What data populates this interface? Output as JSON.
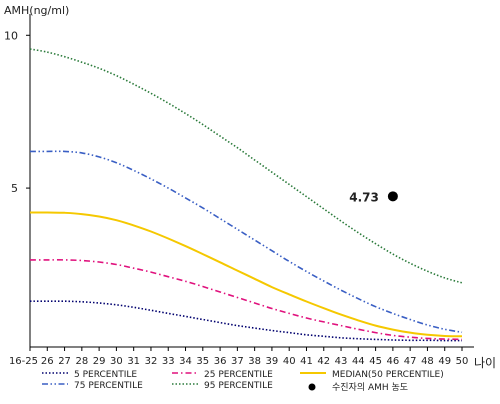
{
  "chart_data": {
    "type": "line",
    "ylabel": "AMH(ng/ml)",
    "xlabel": "나이",
    "categories": [
      "16-25",
      "26",
      "27",
      "28",
      "29",
      "30",
      "31",
      "32",
      "33",
      "34",
      "35",
      "36",
      "37",
      "38",
      "39",
      "40",
      "41",
      "42",
      "43",
      "44",
      "45",
      "46",
      "47",
      "48",
      "49",
      "50"
    ],
    "yticks": [
      {
        "value": 5,
        "label": "5"
      },
      {
        "value": 10,
        "label": "10"
      }
    ],
    "ylim": [
      -0.2,
      10.5
    ],
    "grid": false,
    "series": [
      {
        "name": "5 PERCENTILE",
        "color": "#00006e",
        "dash": "dotted",
        "values": [
          1.3,
          1.3,
          1.3,
          1.28,
          1.24,
          1.18,
          1.1,
          1.0,
          0.9,
          0.8,
          0.7,
          0.6,
          0.5,
          0.42,
          0.34,
          0.27,
          0.2,
          0.15,
          0.1,
          0.07,
          0.05,
          0.03,
          0.02,
          0.02,
          0.01,
          0.01
        ]
      },
      {
        "name": "25 PERCENTILE",
        "color": "#e0117d",
        "dash": "dashdot",
        "values": [
          2.65,
          2.65,
          2.65,
          2.63,
          2.58,
          2.5,
          2.38,
          2.25,
          2.1,
          1.95,
          1.78,
          1.6,
          1.42,
          1.24,
          1.06,
          0.9,
          0.75,
          0.62,
          0.5,
          0.38,
          0.27,
          0.18,
          0.12,
          0.08,
          0.06,
          0.05
        ]
      },
      {
        "name": "MEDIAN(50 PERCENTILE)",
        "color": "#f5c800",
        "dash": "solid",
        "values": [
          4.2,
          4.2,
          4.19,
          4.15,
          4.07,
          3.95,
          3.78,
          3.58,
          3.35,
          3.1,
          2.84,
          2.57,
          2.3,
          2.03,
          1.76,
          1.52,
          1.29,
          1.07,
          0.86,
          0.67,
          0.5,
          0.37,
          0.27,
          0.2,
          0.16,
          0.15
        ]
      },
      {
        "name": "75 PERCENTILE",
        "color": "#3a5fc4",
        "dash": "dashdotdot",
        "values": [
          6.2,
          6.2,
          6.2,
          6.15,
          6.02,
          5.83,
          5.58,
          5.3,
          5.0,
          4.68,
          4.35,
          4.0,
          3.65,
          3.3,
          2.95,
          2.6,
          2.27,
          1.96,
          1.66,
          1.38,
          1.12,
          0.9,
          0.7,
          0.52,
          0.38,
          0.28
        ]
      },
      {
        "name": "95 PERCENTILE",
        "color": "#2a7a3a",
        "dash": "dotted",
        "values": [
          9.55,
          9.45,
          9.3,
          9.12,
          8.92,
          8.68,
          8.4,
          8.1,
          7.78,
          7.44,
          7.08,
          6.7,
          6.32,
          5.92,
          5.52,
          5.12,
          4.72,
          4.32,
          3.92,
          3.54,
          3.18,
          2.84,
          2.54,
          2.28,
          2.06,
          1.9
        ]
      }
    ],
    "point": {
      "name": "수진자의 AMH 농도",
      "x": "46",
      "y": 4.73,
      "label": "4.73"
    }
  }
}
